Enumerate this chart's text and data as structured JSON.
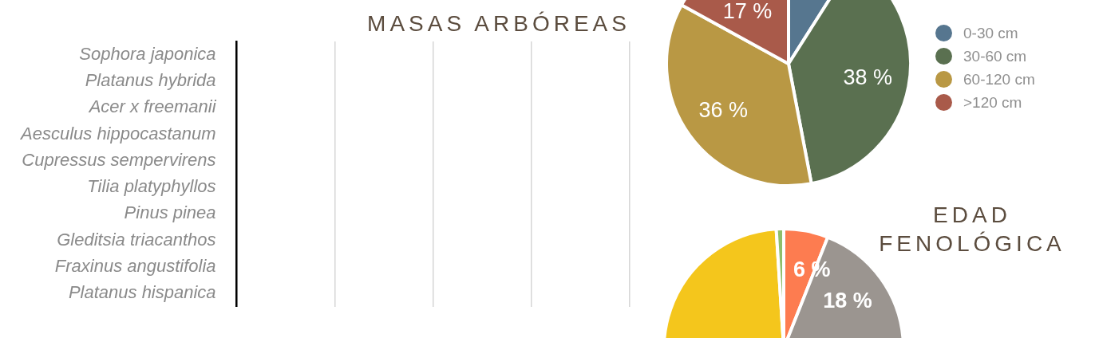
{
  "chart_data": [
    {
      "type": "other",
      "title": "MASAS ARBÓREAS",
      "categories": [
        "Sophora japonica",
        "Platanus hybrida",
        "Acer x freemanii",
        "Aesculus hippocastanum",
        "Cupressus sempervirens",
        "Tilia platyphyllos",
        "Pinus pinea",
        "Gleditsia triacanthos",
        "Fraxinus angustifolia",
        "Platanus hispanica"
      ]
    },
    {
      "type": "pie",
      "legend": "right",
      "categories": [
        "0-30 cm",
        "30-60 cm",
        "60-120 cm",
        ">120 cm"
      ],
      "values": [
        9,
        38,
        36,
        17
      ],
      "colors": [
        "#56768f",
        "#5a7050",
        "#b99844",
        "#a95a4a"
      ],
      "value_labels": [
        null,
        "38 %",
        "36 %",
        "17 %"
      ]
    },
    {
      "type": "pie",
      "title": "EDAD FENOLÓGICA",
      "legend": false,
      "categories": [
        null,
        null,
        null,
        null
      ],
      "values": [
        6,
        18,
        75,
        1
      ],
      "colors": [
        "#fd7c50",
        "#9b9590",
        "#f4c61c",
        "#8fbf6a"
      ],
      "value_labels": [
        "6 %",
        "18 %",
        null,
        null
      ]
    }
  ]
}
